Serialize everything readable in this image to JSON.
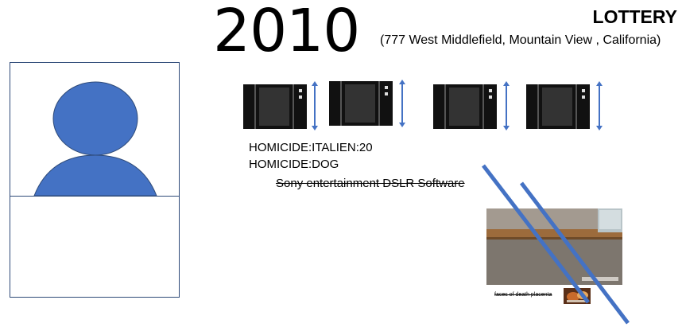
{
  "header": {
    "year": "2010",
    "title": "LOTTERY",
    "address": "(777 West Middlefield, Mountain View , California)"
  },
  "portrait": {
    "icon": "user-silhouette-icon",
    "fill_color": "#4472c4"
  },
  "cameras": {
    "icon": "camera-diagram-icon",
    "count": 4
  },
  "notes": {
    "line1": "HOMICIDE:ITALIEN:20",
    "line2": "HOMICIDE:DOG",
    "struck_line": "Sony entertainment DSLR Software"
  },
  "photo": {
    "caption": "faces of death placenta"
  },
  "colors": {
    "accent_blue": "#4472c4",
    "text": "#000000"
  }
}
